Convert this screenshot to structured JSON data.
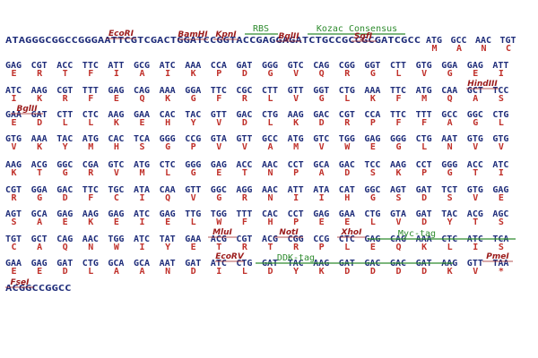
{
  "rows": [
    {
      "leader": "ATAGGGCGGCCGGGAATTCGTCGACTGGATCCGGTACCGAGGAGATCTGCCGCCGCGATCGCC",
      "codons": [
        "ATG",
        "GCC",
        "AAC",
        "TGT"
      ],
      "aa": [
        "M",
        "A",
        "N",
        "C"
      ],
      "features": [
        "EcoRI",
        "BamHI",
        "KpnI",
        "RBS",
        "BglII",
        "Kozac Consensus",
        "SgfI"
      ]
    },
    {
      "codons": [
        "GAG",
        "CGT",
        "ACC",
        "TTC",
        "ATT",
        "GCG",
        "ATC",
        "AAA",
        "CCA",
        "GAT",
        "GGG",
        "GTC",
        "CAG",
        "CGG",
        "GGT",
        "CTT",
        "GTG",
        "GGA",
        "GAG",
        "ATT"
      ],
      "aa": [
        "E",
        "R",
        "T",
        "F",
        "I",
        "A",
        "I",
        "K",
        "P",
        "D",
        "G",
        "V",
        "Q",
        "R",
        "G",
        "L",
        "V",
        "G",
        "E",
        "I"
      ],
      "features": []
    },
    {
      "codons": [
        "ATC",
        "AAG",
        "CGT",
        "TTT",
        "GAG",
        "CAG",
        "AAA",
        "GGA",
        "TTC",
        "CGC",
        "CTT",
        "GTT",
        "GGT",
        "CTG",
        "AAA",
        "TTC",
        "ATG",
        "CAA",
        "GCT",
        "TCC"
      ],
      "aa": [
        "I",
        "K",
        "R",
        "F",
        "E",
        "Q",
        "K",
        "G",
        "F",
        "R",
        "L",
        "V",
        "G",
        "L",
        "K",
        "F",
        "M",
        "Q",
        "A",
        "S"
      ],
      "features": [
        "HindIII"
      ]
    },
    {
      "codons": [
        "GAA",
        "GAT",
        "CTT",
        "CTC",
        "AAG",
        "GAA",
        "CAC",
        "TAC",
        "GTT",
        "GAC",
        "CTG",
        "AAG",
        "GAC",
        "CGT",
        "CCA",
        "TTC",
        "TTT",
        "GCC",
        "GGC",
        "CTG"
      ],
      "aa": [
        "E",
        "D",
        "L",
        "L",
        "K",
        "E",
        "H",
        "Y",
        "V",
        "D",
        "L",
        "K",
        "D",
        "R",
        "P",
        "F",
        "F",
        "A",
        "G",
        "L"
      ],
      "features": [
        "BglII"
      ]
    },
    {
      "codons": [
        "GTG",
        "AAA",
        "TAC",
        "ATG",
        "CAC",
        "TCA",
        "GGG",
        "CCG",
        "GTA",
        "GTT",
        "GCC",
        "ATG",
        "GTC",
        "TGG",
        "GAG",
        "GGG",
        "CTG",
        "AAT",
        "GTG",
        "GTG"
      ],
      "aa": [
        "V",
        "K",
        "Y",
        "M",
        "H",
        "S",
        "G",
        "P",
        "V",
        "V",
        "A",
        "M",
        "V",
        "W",
        "E",
        "G",
        "L",
        "N",
        "V",
        "V"
      ],
      "features": []
    },
    {
      "codons": [
        "AAG",
        "ACG",
        "GGC",
        "CGA",
        "GTC",
        "ATG",
        "CTC",
        "GGG",
        "GAG",
        "ACC",
        "AAC",
        "CCT",
        "GCA",
        "GAC",
        "TCC",
        "AAG",
        "CCT",
        "GGG",
        "ACC",
        "ATC"
      ],
      "aa": [
        "K",
        "T",
        "G",
        "R",
        "V",
        "M",
        "L",
        "G",
        "E",
        "T",
        "N",
        "P",
        "A",
        "D",
        "S",
        "K",
        "P",
        "G",
        "T",
        "I"
      ],
      "features": []
    },
    {
      "codons": [
        "CGT",
        "GGA",
        "GAC",
        "TTC",
        "TGC",
        "ATA",
        "CAA",
        "GTT",
        "GGC",
        "AGG",
        "AAC",
        "ATT",
        "ATA",
        "CAT",
        "GGC",
        "AGT",
        "GAT",
        "TCT",
        "GTG",
        "GAG"
      ],
      "aa": [
        "R",
        "G",
        "D",
        "F",
        "C",
        "I",
        "Q",
        "V",
        "G",
        "R",
        "N",
        "I",
        "I",
        "H",
        "G",
        "S",
        "D",
        "S",
        "V",
        "E"
      ],
      "features": []
    },
    {
      "codons": [
        "AGT",
        "GCA",
        "GAG",
        "AAG",
        "GAG",
        "ATC",
        "GAG",
        "TTG",
        "TGG",
        "TTT",
        "CAC",
        "CCT",
        "GAG",
        "GAA",
        "CTG",
        "GTA",
        "GAT",
        "TAC",
        "ACG",
        "AGC"
      ],
      "aa": [
        "S",
        "A",
        "E",
        "K",
        "E",
        "I",
        "E",
        "L",
        "W",
        "F",
        "H",
        "P",
        "E",
        "E",
        "L",
        "V",
        "D",
        "Y",
        "T",
        "S"
      ],
      "features": []
    },
    {
      "codons": [
        "TGT",
        "GCT",
        "CAG",
        "AAC",
        "TGG",
        "ATC",
        "TAT",
        "GAA",
        "ACG",
        "CGT",
        "ACG",
        "CGG",
        "CCG",
        "CTC",
        "GAG",
        "CAG",
        "AAA",
        "CTC",
        "ATC",
        "TCA"
      ],
      "aa": [
        "C",
        "A",
        "Q",
        "N",
        "W",
        "I",
        "Y",
        "E",
        "T",
        "R",
        "T",
        "R",
        "P",
        "L",
        "E",
        "Q",
        "K",
        "L",
        "I",
        "S"
      ],
      "features": [
        "MluI",
        "NotI",
        "XhoI",
        "Myc-tag"
      ]
    },
    {
      "codons": [
        "GAA",
        "GAG",
        "GAT",
        "CTG",
        "GCA",
        "GCA",
        "AAT",
        "GAT",
        "ATC",
        "CTG",
        "GAT",
        "TAC",
        "AAG",
        "GAT",
        "GAC",
        "GAC",
        "GAT",
        "AAG",
        "GTT",
        "TAA"
      ],
      "aa": [
        "E",
        "E",
        "D",
        "L",
        "A",
        "A",
        "N",
        "D",
        "I",
        "L",
        "D",
        "Y",
        "K",
        "D",
        "D",
        "D",
        "D",
        "K",
        "V",
        "*"
      ],
      "features": [
        "EcoRV",
        "DDK-tag",
        "PmeI"
      ]
    },
    {
      "leader": "ACGGCCGGCC",
      "codons": [],
      "aa": [],
      "features": [
        "FseI"
      ]
    }
  ]
}
